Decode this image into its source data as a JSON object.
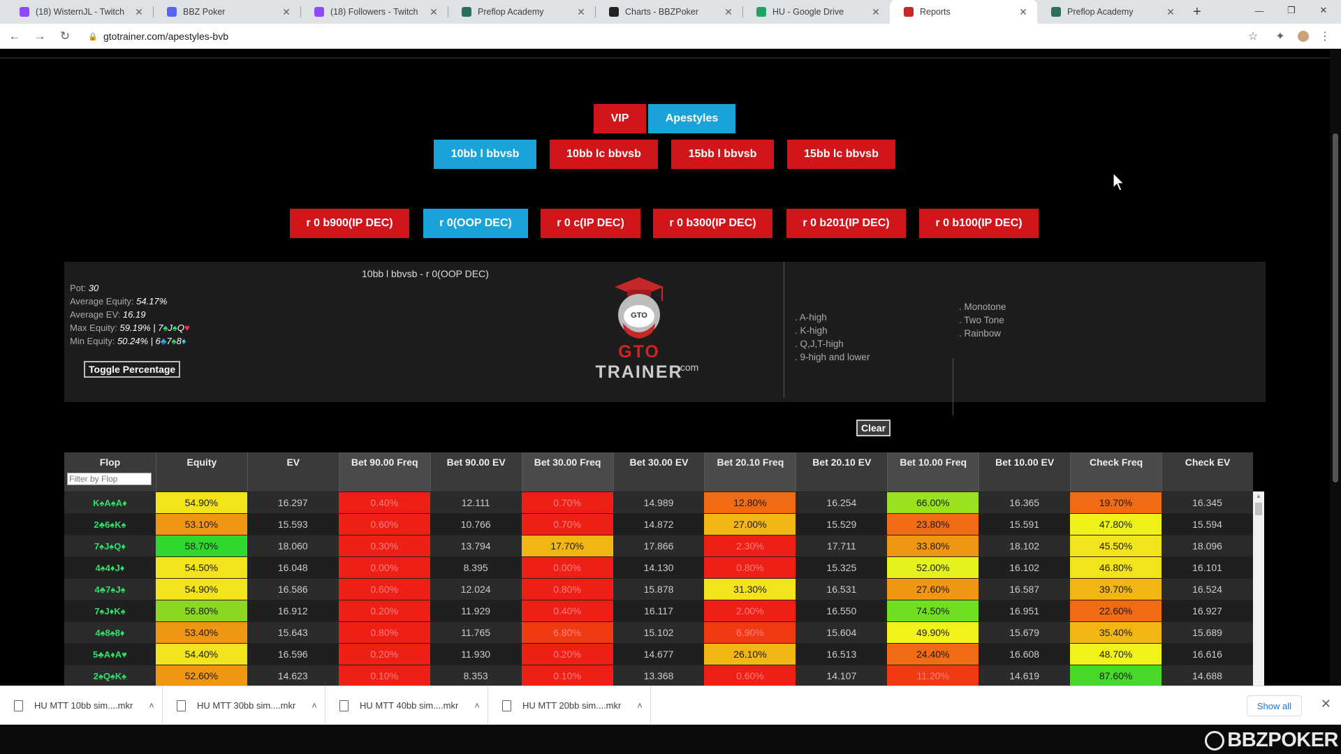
{
  "browser": {
    "tabs": [
      {
        "title": "(18) WisternJL - Twitch",
        "icon": "twitch-icon",
        "color": "#9146ff"
      },
      {
        "title": "BBZ Poker",
        "icon": "discord-icon",
        "color": "#5865f2"
      },
      {
        "title": "(18) Followers - Twitch",
        "icon": "twitch-icon",
        "color": "#9146ff"
      },
      {
        "title": "Preflop Academy",
        "icon": "gradcap-icon",
        "color": "#2b6f5e"
      },
      {
        "title": "Charts - BBZPoker",
        "icon": "gear-icon",
        "color": "#222222"
      },
      {
        "title": "HU - Google Drive",
        "icon": "drive-icon",
        "color": "#1fa463"
      },
      {
        "title": "Reports",
        "icon": "gradcap-icon",
        "color": "#c62828",
        "active": true
      },
      {
        "title": "Preflop Academy",
        "icon": "gradcap-icon",
        "color": "#2b6f5e"
      }
    ],
    "url": "gtotrainer.com/apestyles-bvb"
  },
  "menu": {
    "row1": [
      "VIP",
      "Apestyles"
    ],
    "row2": [
      "10bb l bbvsb",
      "10bb lc bbvsb",
      "15bb l bbvsb",
      "15bb lc bbvsb"
    ],
    "row3": [
      "r 0 b900(IP DEC)",
      "r 0(OOP DEC)",
      "r 0 c(IP DEC)",
      "r 0 b300(IP DEC)",
      "r 0 b201(IP DEC)",
      "r 0 b100(IP DEC)"
    ]
  },
  "report": {
    "title": "10bb l bbvsb - r 0(OOP DEC)",
    "pot_label": "Pot:",
    "pot": "30",
    "avg_equity_label": "Average Equity:",
    "avg_equity": "54.17%",
    "avg_ev_label": "Average EV:",
    "avg_ev": "16.19",
    "max_equity_label": "Max Equity:",
    "max_equity": "59.19%",
    "max_equity_sep": "|",
    "max_equity_flop": [
      {
        "r": "7",
        "s": "spade"
      },
      {
        "r": "J",
        "s": "spade"
      },
      {
        "r": "Q",
        "s": "heart"
      }
    ],
    "min_equity_label": "Min Equity:",
    "min_equity": "50.24%",
    "min_equity_sep": "|",
    "min_equity_flop": [
      {
        "r": "6",
        "s": "club"
      },
      {
        "r": "7",
        "s": "spade"
      },
      {
        "r": "8",
        "s": "diamond"
      }
    ],
    "toggle_label": "Toggle Percentage",
    "logo_gto": "GTO",
    "logo_trainer": " TRAINER",
    "logo_com": ".com",
    "logo_badge": "GTO",
    "filters_high": [
      ". A-high",
      ". K-high",
      ". Q,J,T-high",
      ". 9-high and lower"
    ],
    "filters_texture": [
      ". Monotone",
      ". Two Tone",
      ". Rainbow"
    ],
    "clear_label": "Clear"
  },
  "table": {
    "columns": [
      "Flop",
      "Equity",
      "EV",
      "Bet 90.00 Freq",
      "Bet 90.00 EV",
      "Bet 30.00 Freq",
      "Bet 30.00 EV",
      "Bet 20.10 Freq",
      "Bet 20.10 EV",
      "Bet 10.00 Freq",
      "Bet 10.00 EV",
      "Check Freq",
      "Check EV"
    ],
    "filter_placeholder": "Filter by Flop",
    "rows": [
      {
        "flop": "K♠A♠A♦",
        "vals": [
          "54.90%",
          "16.297",
          "0.40%",
          "12.111",
          "0.70%",
          "14.989",
          "12.80%",
          "16.254",
          "66.00%",
          "16.365",
          "19.70%",
          "16.345"
        ],
        "colors": [
          "#f2e31b",
          null,
          "#ee1f14",
          null,
          "#ee1f14",
          null,
          "#f06b13",
          null,
          "#9be21e",
          null,
          "#f06b13",
          null
        ]
      },
      {
        "flop": "2♣6♠K♠",
        "vals": [
          "53.10%",
          "15.593",
          "0.60%",
          "10.766",
          "0.70%",
          "14.872",
          "27.00%",
          "15.529",
          "23.80%",
          "15.591",
          "47.80%",
          "15.594"
        ],
        "colors": [
          "#f19613",
          null,
          "#ee1f14",
          null,
          "#ee1f14",
          null,
          "#f2b613",
          null,
          "#f06b13",
          null,
          "#eef219",
          null
        ]
      },
      {
        "flop": "7♠J♠Q♦",
        "vals": [
          "58.70%",
          "18.060",
          "0.30%",
          "13.794",
          "17.70%",
          "17.866",
          "2.30%",
          "17.711",
          "33.80%",
          "18.102",
          "45.50%",
          "18.096"
        ],
        "colors": [
          "#2fd92b",
          null,
          "#ee1f14",
          null,
          "#f2b613",
          null,
          "#ee1f14",
          null,
          "#f19613",
          null,
          "#f2e31b",
          null
        ]
      },
      {
        "flop": "4♠4♦J♦",
        "vals": [
          "54.50%",
          "16.048",
          "0.00%",
          "8.395",
          "0.00%",
          "14.130",
          "0.80%",
          "15.325",
          "52.00%",
          "16.102",
          "46.80%",
          "16.101"
        ],
        "colors": [
          "#f2e31b",
          null,
          "#ee1f14",
          null,
          "#ee1f14",
          null,
          "#ee1f14",
          null,
          "#e3f21b",
          null,
          "#f2e31b",
          null
        ]
      },
      {
        "flop": "4♣7♠J♠",
        "vals": [
          "54.90%",
          "16.586",
          "0.60%",
          "12.024",
          "0.80%",
          "15.878",
          "31.30%",
          "16.531",
          "27.60%",
          "16.587",
          "39.70%",
          "16.524"
        ],
        "colors": [
          "#f2e31b",
          null,
          "#ee1f14",
          null,
          "#ee1f14",
          null,
          "#f2e31b",
          null,
          "#f19613",
          null,
          "#f2b613",
          null
        ]
      },
      {
        "flop": "7♠J♦K♠",
        "vals": [
          "56.80%",
          "16.912",
          "0.20%",
          "11.929",
          "0.40%",
          "16.117",
          "2.00%",
          "16.550",
          "74.50%",
          "16.951",
          "22.60%",
          "16.927"
        ],
        "colors": [
          "#8ad81f",
          null,
          "#ee1f14",
          null,
          "#ee1f14",
          null,
          "#ee1f14",
          null,
          "#6fe01f",
          null,
          "#f06b13",
          null
        ]
      },
      {
        "flop": "4♠8♠8♦",
        "vals": [
          "53.40%",
          "15.643",
          "0.80%",
          "11.765",
          "6.80%",
          "15.102",
          "6.90%",
          "15.604",
          "49.90%",
          "15.679",
          "35.40%",
          "15.689"
        ],
        "colors": [
          "#f19613",
          null,
          "#ee1f14",
          null,
          "#f03a14",
          null,
          "#f03a14",
          null,
          "#f2f21b",
          null,
          "#f2b613",
          null
        ]
      },
      {
        "flop": "5♣A♦A♥",
        "vals": [
          "54.40%",
          "16.596",
          "0.20%",
          "11.930",
          "0.20%",
          "14.677",
          "26.10%",
          "16.513",
          "24.40%",
          "16.608",
          "48.70%",
          "16.616"
        ],
        "colors": [
          "#f2e31b",
          null,
          "#ee1f14",
          null,
          "#ee1f14",
          null,
          "#f2b613",
          null,
          "#f06b13",
          null,
          "#f2f21b",
          null
        ]
      },
      {
        "flop": "2♠Q♠K♠",
        "vals": [
          "52.60%",
          "14.623",
          "0.10%",
          "8.353",
          "0.10%",
          "13.368",
          "0.60%",
          "14.107",
          "11.20%",
          "14.619",
          "87.60%",
          "14.688"
        ],
        "colors": [
          "#f19613",
          null,
          "#ee1f14",
          null,
          "#ee1f14",
          null,
          "#ee1f14",
          null,
          "#f03a14",
          null,
          "#48d82a",
          null
        ]
      }
    ]
  },
  "downloads": {
    "items": [
      "HU MTT 10bb sim....mkr",
      "HU MTT 30bb sim....mkr",
      "HU MTT 40bb sim....mkr",
      "HU MTT 20bb sim....mkr"
    ],
    "show_all": "Show all"
  },
  "watermark": "BBZPOKER"
}
